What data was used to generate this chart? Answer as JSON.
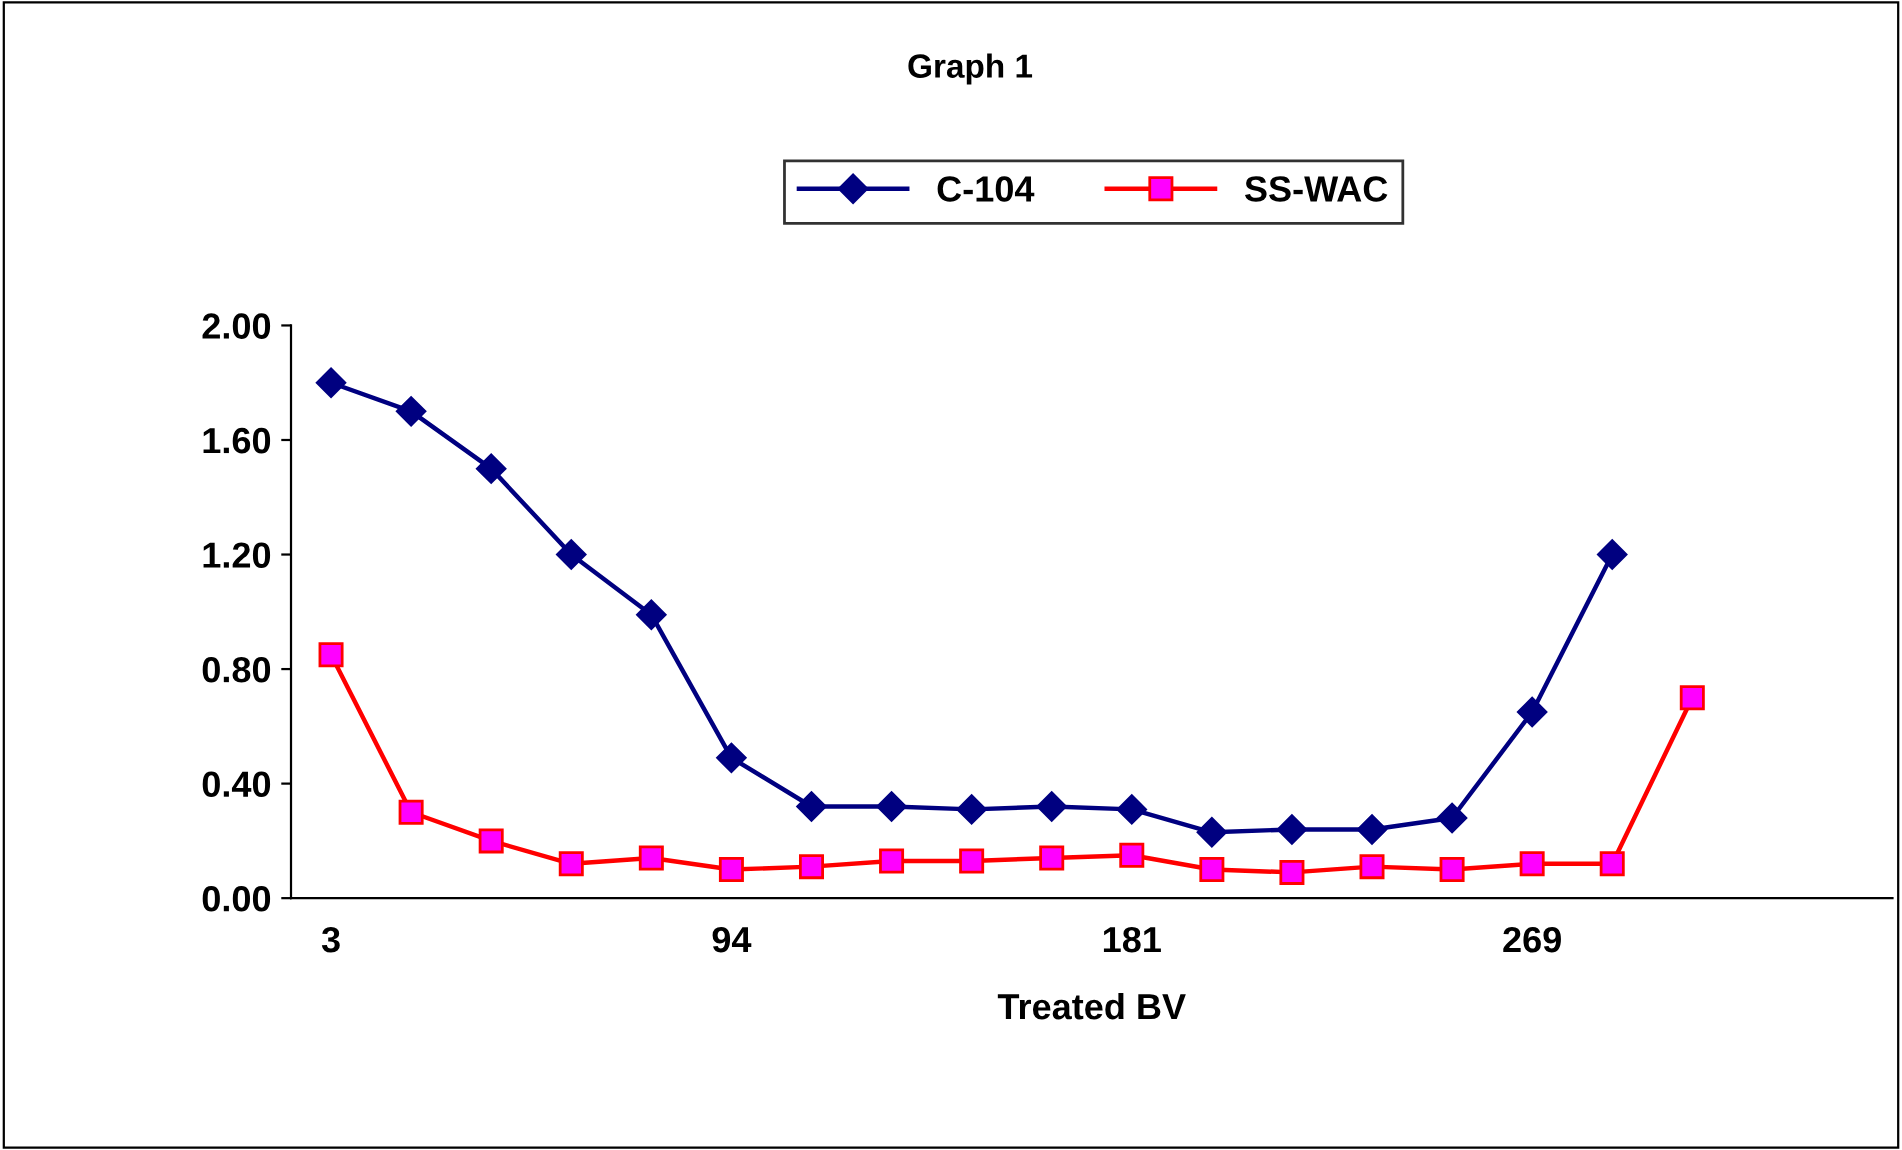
{
  "chart_data": {
    "type": "line",
    "title": "Graph 1",
    "xlabel": "Treated BV",
    "categories": [
      "3",
      null,
      null,
      null,
      null,
      "94",
      null,
      null,
      null,
      null,
      "181",
      null,
      null,
      null,
      null,
      "269",
      null,
      null,
      null,
      null
    ],
    "series": [
      {
        "name": "C-104",
        "color": "#000080",
        "marker": "diamond",
        "values": [
          1.8,
          1.7,
          1.5,
          1.2,
          0.99,
          0.49,
          0.32,
          0.32,
          0.31,
          0.32,
          0.31,
          0.23,
          0.24,
          0.24,
          0.28,
          0.65,
          1.2,
          null,
          null,
          null
        ]
      },
      {
        "name": "SS-WAC",
        "color": "#ff0000",
        "marker": "square",
        "values": [
          0.85,
          0.3,
          0.2,
          0.12,
          0.14,
          0.1,
          0.11,
          0.13,
          0.13,
          0.14,
          0.15,
          0.1,
          0.09,
          0.11,
          0.1,
          0.12,
          0.12,
          0.7,
          null,
          null
        ]
      }
    ],
    "ylim": [
      0,
      2
    ],
    "yticks": [
      {
        "value": 0,
        "label": "0.00"
      },
      {
        "value": 0.4,
        "label": "0.40"
      },
      {
        "value": 0.8,
        "label": "0.80"
      },
      {
        "value": 1.2,
        "label": "1.20"
      },
      {
        "value": 1.6,
        "label": "1.60"
      },
      {
        "value": 2,
        "label": "2.00"
      }
    ],
    "grid": false,
    "legend": "top",
    "line_style": "solid"
  }
}
